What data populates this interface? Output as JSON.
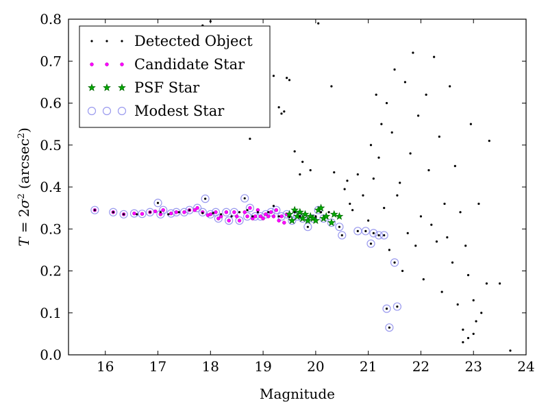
{
  "chart_data": {
    "type": "scatter",
    "title": "",
    "xlabel": "Magnitude",
    "ylabel": "T = 2σ² (arcsec²)",
    "ylabel_parts": {
      "lhs": "T",
      "eq": " = 2",
      "sigma": "σ",
      "sup": "2",
      "paren_open": " (arcsec",
      "paren_close": ")"
    },
    "xlim": [
      15.3,
      24.0
    ],
    "ylim": [
      0.0,
      0.8
    ],
    "xticks": [
      16,
      17,
      18,
      19,
      20,
      21,
      22,
      23,
      24
    ],
    "yticks": [
      0.0,
      0.1,
      0.2,
      0.3,
      0.4,
      0.5,
      0.6,
      0.7,
      0.8
    ],
    "ytick_labels": [
      "0.0",
      "0.1",
      "0.2",
      "0.3",
      "0.4",
      "0.5",
      "0.6",
      "0.7",
      "0.8"
    ],
    "grid": false,
    "legend_position": "top-left",
    "legend": [
      {
        "label": "Detected Object",
        "marker": "dot",
        "color": "#000000"
      },
      {
        "label": "Candidate Star",
        "marker": "circle",
        "color": "#ff00ff"
      },
      {
        "label": "PSF Star",
        "marker": "star",
        "color": "#00a000"
      },
      {
        "label": "Modest Star",
        "marker": "open-circle",
        "color": "#9999ee"
      }
    ],
    "series": [
      {
        "name": "Detected Object",
        "points": [
          [
            15.8,
            0.345
          ],
          [
            16.15,
            0.34
          ],
          [
            16.35,
            0.335
          ],
          [
            16.6,
            0.335
          ],
          [
            16.85,
            0.34
          ],
          [
            17.0,
            0.362
          ],
          [
            17.05,
            0.34
          ],
          [
            17.2,
            0.335
          ],
          [
            17.4,
            0.34
          ],
          [
            17.6,
            0.345
          ],
          [
            17.85,
            0.338
          ],
          [
            17.9,
            0.372
          ],
          [
            18.05,
            0.338
          ],
          [
            18.2,
            0.335
          ],
          [
            18.4,
            0.33
          ],
          [
            18.55,
            0.34
          ],
          [
            18.65,
            0.373
          ],
          [
            18.7,
            0.345
          ],
          [
            18.8,
            0.33
          ],
          [
            18.9,
            0.34
          ],
          [
            19.1,
            0.34
          ],
          [
            19.2,
            0.355
          ],
          [
            19.3,
            0.33
          ],
          [
            19.5,
            0.328
          ],
          [
            19.6,
            0.34
          ],
          [
            19.7,
            0.33
          ],
          [
            19.85,
            0.305
          ],
          [
            20.0,
            0.33
          ],
          [
            20.1,
            0.34
          ],
          [
            20.25,
            0.34
          ],
          [
            20.45,
            0.305
          ],
          [
            20.5,
            0.285
          ],
          [
            20.8,
            0.295
          ],
          [
            20.95,
            0.295
          ],
          [
            21.05,
            0.265
          ],
          [
            21.1,
            0.29
          ],
          [
            21.2,
            0.285
          ],
          [
            21.3,
            0.285
          ],
          [
            21.35,
            0.11
          ],
          [
            21.4,
            0.065
          ],
          [
            21.5,
            0.22
          ],
          [
            21.55,
            0.115
          ],
          [
            23.7,
            0.01
          ],
          [
            17.85,
            0.785
          ],
          [
            18.0,
            0.795
          ],
          [
            19.0,
            0.75
          ],
          [
            19.2,
            0.665
          ],
          [
            19.3,
            0.59
          ],
          [
            19.35,
            0.575
          ],
          [
            19.4,
            0.58
          ],
          [
            19.45,
            0.66
          ],
          [
            19.5,
            0.655
          ],
          [
            18.75,
            0.515
          ],
          [
            19.6,
            0.485
          ],
          [
            19.7,
            0.43
          ],
          [
            19.75,
            0.46
          ],
          [
            19.9,
            0.44
          ],
          [
            20.05,
            0.79
          ],
          [
            20.3,
            0.64
          ],
          [
            20.35,
            0.435
          ],
          [
            20.55,
            0.395
          ],
          [
            20.6,
            0.415
          ],
          [
            20.65,
            0.36
          ],
          [
            20.7,
            0.345
          ],
          [
            20.8,
            0.43
          ],
          [
            20.9,
            0.38
          ],
          [
            21.0,
            0.32
          ],
          [
            21.05,
            0.5
          ],
          [
            21.1,
            0.42
          ],
          [
            21.15,
            0.62
          ],
          [
            21.2,
            0.47
          ],
          [
            21.25,
            0.55
          ],
          [
            21.3,
            0.35
          ],
          [
            21.35,
            0.6
          ],
          [
            21.4,
            0.25
          ],
          [
            21.45,
            0.53
          ],
          [
            21.5,
            0.68
          ],
          [
            21.55,
            0.38
          ],
          [
            21.6,
            0.41
          ],
          [
            21.65,
            0.2
          ],
          [
            21.7,
            0.65
          ],
          [
            21.75,
            0.29
          ],
          [
            21.8,
            0.48
          ],
          [
            21.85,
            0.72
          ],
          [
            21.9,
            0.26
          ],
          [
            21.95,
            0.57
          ],
          [
            22.0,
            0.33
          ],
          [
            22.05,
            0.18
          ],
          [
            22.1,
            0.62
          ],
          [
            22.15,
            0.44
          ],
          [
            22.2,
            0.31
          ],
          [
            22.25,
            0.71
          ],
          [
            22.3,
            0.27
          ],
          [
            22.35,
            0.52
          ],
          [
            22.4,
            0.15
          ],
          [
            22.45,
            0.36
          ],
          [
            22.5,
            0.28
          ],
          [
            22.55,
            0.64
          ],
          [
            22.6,
            0.22
          ],
          [
            22.65,
            0.45
          ],
          [
            22.7,
            0.12
          ],
          [
            22.75,
            0.34
          ],
          [
            22.8,
            0.06
          ],
          [
            22.85,
            0.26
          ],
          [
            22.9,
            0.19
          ],
          [
            22.95,
            0.55
          ],
          [
            23.0,
            0.13
          ],
          [
            23.05,
            0.08
          ],
          [
            23.1,
            0.36
          ],
          [
            23.15,
            0.1
          ],
          [
            23.25,
            0.17
          ],
          [
            23.3,
            0.51
          ],
          [
            23.5,
            0.17
          ],
          [
            22.8,
            0.03
          ],
          [
            22.9,
            0.04
          ],
          [
            23.0,
            0.05
          ]
        ]
      },
      {
        "name": "Candidate Star",
        "points": [
          [
            15.8,
            0.345
          ],
          [
            16.15,
            0.34
          ],
          [
            16.35,
            0.335
          ],
          [
            16.55,
            0.337
          ],
          [
            16.7,
            0.336
          ],
          [
            16.85,
            0.34
          ],
          [
            16.95,
            0.342
          ],
          [
            17.05,
            0.335
          ],
          [
            17.1,
            0.345
          ],
          [
            17.25,
            0.337
          ],
          [
            17.35,
            0.34
          ],
          [
            17.5,
            0.34
          ],
          [
            17.6,
            0.345
          ],
          [
            17.7,
            0.345
          ],
          [
            17.75,
            0.35
          ],
          [
            17.85,
            0.34
          ],
          [
            17.95,
            0.333
          ],
          [
            18.0,
            0.335
          ],
          [
            18.1,
            0.34
          ],
          [
            18.15,
            0.325
          ],
          [
            18.2,
            0.33
          ],
          [
            18.3,
            0.34
          ],
          [
            18.35,
            0.32
          ],
          [
            18.45,
            0.34
          ],
          [
            18.5,
            0.33
          ],
          [
            18.55,
            0.32
          ],
          [
            18.65,
            0.34
          ],
          [
            18.7,
            0.33
          ],
          [
            18.75,
            0.35
          ],
          [
            18.8,
            0.325
          ],
          [
            18.85,
            0.33
          ],
          [
            18.9,
            0.345
          ],
          [
            18.95,
            0.33
          ],
          [
            19.0,
            0.325
          ],
          [
            19.05,
            0.335
          ],
          [
            19.1,
            0.33
          ],
          [
            19.15,
            0.34
          ],
          [
            19.2,
            0.33
          ],
          [
            19.25,
            0.345
          ],
          [
            19.3,
            0.32
          ],
          [
            19.35,
            0.33
          ],
          [
            19.4,
            0.315
          ],
          [
            19.45,
            0.335
          ]
        ]
      },
      {
        "name": "PSF Star",
        "points": [
          [
            19.5,
            0.335
          ],
          [
            19.55,
            0.32
          ],
          [
            19.6,
            0.345
          ],
          [
            19.65,
            0.33
          ],
          [
            19.7,
            0.34
          ],
          [
            19.75,
            0.325
          ],
          [
            19.8,
            0.335
          ],
          [
            19.85,
            0.32
          ],
          [
            19.9,
            0.33
          ],
          [
            19.95,
            0.325
          ],
          [
            20.0,
            0.32
          ],
          [
            20.05,
            0.345
          ],
          [
            20.1,
            0.35
          ],
          [
            20.15,
            0.325
          ],
          [
            20.2,
            0.33
          ],
          [
            20.3,
            0.315
          ],
          [
            20.35,
            0.335
          ],
          [
            20.45,
            0.33
          ]
        ]
      },
      {
        "name": "Modest Star",
        "points": [
          [
            15.8,
            0.345
          ],
          [
            16.15,
            0.34
          ],
          [
            16.35,
            0.335
          ],
          [
            16.55,
            0.337
          ],
          [
            16.7,
            0.336
          ],
          [
            16.85,
            0.34
          ],
          [
            17.0,
            0.362
          ],
          [
            17.05,
            0.335
          ],
          [
            17.1,
            0.345
          ],
          [
            17.25,
            0.337
          ],
          [
            17.35,
            0.34
          ],
          [
            17.5,
            0.34
          ],
          [
            17.6,
            0.345
          ],
          [
            17.75,
            0.35
          ],
          [
            17.85,
            0.34
          ],
          [
            17.9,
            0.372
          ],
          [
            18.0,
            0.335
          ],
          [
            18.1,
            0.34
          ],
          [
            18.15,
            0.325
          ],
          [
            18.3,
            0.34
          ],
          [
            18.35,
            0.32
          ],
          [
            18.45,
            0.34
          ],
          [
            18.55,
            0.32
          ],
          [
            18.65,
            0.373
          ],
          [
            18.7,
            0.33
          ],
          [
            18.75,
            0.35
          ],
          [
            18.85,
            0.33
          ],
          [
            18.95,
            0.33
          ],
          [
            19.05,
            0.335
          ],
          [
            19.15,
            0.34
          ],
          [
            19.25,
            0.345
          ],
          [
            19.35,
            0.33
          ],
          [
            19.45,
            0.335
          ],
          [
            19.55,
            0.32
          ],
          [
            19.65,
            0.33
          ],
          [
            19.75,
            0.325
          ],
          [
            19.85,
            0.305
          ],
          [
            19.95,
            0.325
          ],
          [
            20.05,
            0.345
          ],
          [
            20.15,
            0.325
          ],
          [
            20.3,
            0.315
          ],
          [
            20.45,
            0.305
          ],
          [
            20.5,
            0.285
          ],
          [
            20.8,
            0.295
          ],
          [
            20.95,
            0.295
          ],
          [
            21.05,
            0.265
          ],
          [
            21.1,
            0.29
          ],
          [
            21.2,
            0.285
          ],
          [
            21.3,
            0.285
          ],
          [
            21.35,
            0.11
          ],
          [
            21.4,
            0.065
          ],
          [
            21.5,
            0.22
          ],
          [
            21.55,
            0.115
          ]
        ]
      }
    ]
  }
}
